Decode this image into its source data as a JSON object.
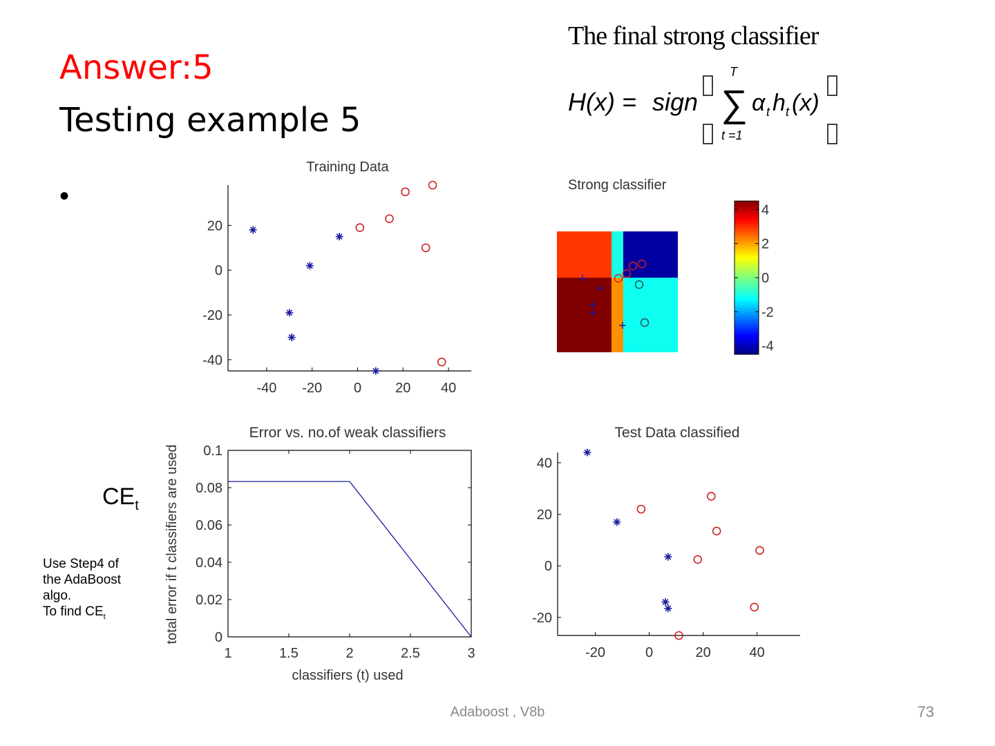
{
  "slide": {
    "answer": "Answer:5",
    "subtitle": "Testing example 5",
    "bullet": "•",
    "formula_title": "The final strong classifier",
    "formula": {
      "lhs": "H(x) =",
      "sign": "sign",
      "sum_top": "T",
      "sum_bottom": "t =1",
      "term_alpha": "α",
      "term_t": "t",
      "term_h": "h",
      "term_x": "(x)"
    },
    "ce_label": {
      "main": "CE",
      "sub": "t"
    },
    "note": {
      "line1": "Use Step4 of",
      "line2": "the AdaBoost",
      "line3": "algo.",
      "line4": "To find CE",
      "line4_sub": "t"
    },
    "footer": "Adaboost , V8b",
    "page_number": "73"
  },
  "chart_data": [
    {
      "type": "scatter",
      "title": "Training Data",
      "xlim": [
        -57,
        50
      ],
      "ylim": [
        -45,
        38
      ],
      "xticks": [
        "-40",
        "-20",
        "0",
        "20",
        "40"
      ],
      "xtick_values": [
        -40,
        -20,
        0,
        20,
        40
      ],
      "yticks": [
        "20",
        "0",
        "-20",
        "-40"
      ],
      "ytick_values": [
        20,
        0,
        -20,
        -40
      ],
      "series": [
        {
          "marker": "asterisk",
          "color": "#1a1aa0",
          "points": [
            [
              -46,
              18
            ],
            [
              -8,
              15
            ],
            [
              -21,
              2
            ],
            [
              -30,
              -19
            ],
            [
              -29,
              -30
            ],
            [
              8,
              -45
            ]
          ]
        },
        {
          "marker": "circle",
          "color": "#cc2222",
          "points": [
            [
              33,
              38
            ],
            [
              21,
              35
            ],
            [
              1,
              19
            ],
            [
              14,
              23
            ],
            [
              30,
              10
            ],
            [
              37,
              -41
            ]
          ]
        }
      ]
    },
    {
      "type": "heatmap",
      "title": "Strong classifier",
      "colorbar_ticks": [
        "4",
        "2",
        "0",
        "-2",
        "-4"
      ],
      "colorbar_values": [
        4,
        2,
        0,
        -2,
        -4
      ],
      "clim": [
        -4.5,
        4.5
      ],
      "regions": [
        {
          "name": "top-left",
          "value": 2.9
        },
        {
          "name": "top-middle",
          "value": -0.9
        },
        {
          "name": "top-right",
          "value": -4.2
        },
        {
          "name": "bottom-left",
          "value": 4.5
        },
        {
          "name": "bottom-middle",
          "value": 2.1
        },
        {
          "name": "bottom-right",
          "value": -1.0
        }
      ]
    },
    {
      "type": "line",
      "title": "Error vs. no.of weak classifiers",
      "xlabel": "classifiers (t) used",
      "ylabel": "total error if t classifiers are used",
      "xlim": [
        1,
        3
      ],
      "ylim": [
        0,
        0.1
      ],
      "xticks": [
        "1",
        "1.5",
        "2",
        "2.5",
        "3"
      ],
      "xtick_values": [
        1,
        1.5,
        2,
        2.5,
        3
      ],
      "yticks": [
        "0.1",
        "0.08",
        "0.06",
        "0.04",
        "0.02",
        "0"
      ],
      "ytick_values": [
        0.1,
        0.08,
        0.06,
        0.04,
        0.02,
        0
      ],
      "series": [
        {
          "color": "#1a1aa0",
          "x": [
            1,
            2,
            3
          ],
          "y": [
            0.0833,
            0.0833,
            0
          ]
        }
      ]
    },
    {
      "type": "scatter",
      "title": "Test Data classified",
      "xlim": [
        -34,
        56
      ],
      "ylim": [
        -27,
        44
      ],
      "xticks": [
        "-20",
        "0",
        "20",
        "40"
      ],
      "xtick_values": [
        -20,
        0,
        20,
        40
      ],
      "yticks": [
        "40",
        "20",
        "0",
        "-20"
      ],
      "ytick_values": [
        40,
        20,
        0,
        -20
      ],
      "series": [
        {
          "marker": "asterisk",
          "color": "#1a1aa0",
          "points": [
            [
              -23,
              44
            ],
            [
              -12,
              17
            ],
            [
              7,
              3.5
            ],
            [
              6,
              -14
            ],
            [
              7,
              -16.5
            ]
          ]
        },
        {
          "marker": "circle",
          "color": "#cc2222",
          "points": [
            [
              23,
              27
            ],
            [
              -3,
              22
            ],
            [
              25,
              13.5
            ],
            [
              41,
              6
            ],
            [
              18,
              2.5
            ],
            [
              39,
              -16
            ],
            [
              11,
              -27
            ]
          ]
        }
      ]
    }
  ]
}
